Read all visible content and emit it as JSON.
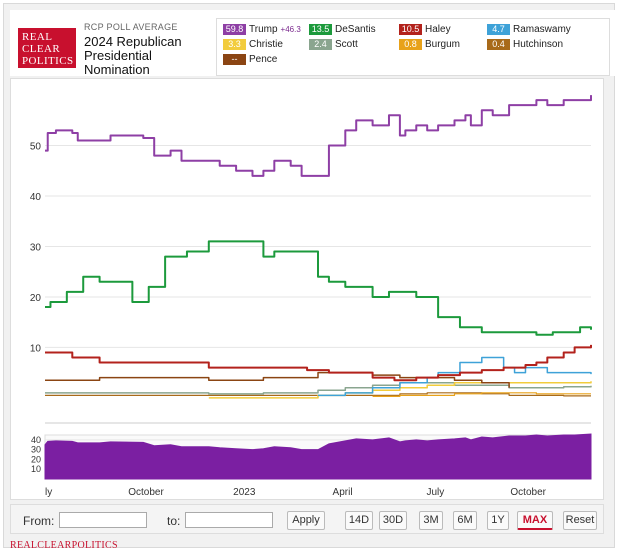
{
  "header": {
    "logo_lines": [
      "REAL",
      "CLEAR",
      "POLITICS"
    ],
    "kicker": "RCP POLL AVERAGE",
    "title": "2024 Republican Presidential Nomination"
  },
  "legend": [
    {
      "value": "59.8",
      "name": "Trump",
      "spread": "+46.3",
      "color": "#8e3fa5"
    },
    {
      "value": "13.5",
      "name": "DeSantis",
      "spread": "",
      "color": "#1c9a3c"
    },
    {
      "value": "10.5",
      "name": "Haley",
      "spread": "",
      "color": "#b3221c"
    },
    {
      "value": "4.7",
      "name": "Ramaswamy",
      "spread": "",
      "color": "#3ea2d8"
    },
    {
      "value": "3.3",
      "name": "Christie",
      "spread": "",
      "color": "#f2cc3c"
    },
    {
      "value": "2.4",
      "name": "Scott",
      "spread": "",
      "color": "#8aa58f"
    },
    {
      "value": "0.8",
      "name": "Burgum",
      "spread": "",
      "color": "#e8a21a"
    },
    {
      "value": "0.4",
      "name": "Hutchinson",
      "spread": "",
      "color": "#a86a1a"
    },
    {
      "value": "--",
      "name": "Pence",
      "spread": "",
      "color": "#8b4513"
    }
  ],
  "chart_data": {
    "type": "line",
    "x_tick_labels": [
      "ly",
      "October",
      "2023",
      "April",
      "July",
      "October"
    ],
    "y_ticks": [
      10,
      20,
      30,
      40,
      50
    ],
    "ylim": [
      -3,
      62
    ],
    "grid": true,
    "series": [
      {
        "name": "Trump",
        "color": "#8e3fa5",
        "width": 2,
        "x": [
          0,
          0.5,
          2,
          5,
          6,
          10,
          12,
          18,
          20,
          23,
          25,
          30,
          32,
          35,
          38,
          40,
          42,
          45,
          47,
          50,
          52,
          55,
          57,
          60,
          63,
          65,
          66,
          68,
          70,
          72,
          75,
          77,
          78,
          80,
          82,
          85,
          88,
          90,
          92,
          95,
          97,
          100
        ],
        "y": [
          49,
          52.5,
          53,
          52.5,
          51,
          51,
          52,
          51.5,
          48,
          49,
          47,
          47,
          46,
          45,
          44,
          45,
          47,
          46,
          44,
          44,
          50,
          53,
          55,
          54,
          56,
          52,
          53,
          54,
          53,
          54,
          55,
          56,
          54,
          57,
          56,
          58,
          58,
          59,
          58,
          59,
          59,
          60
        ]
      },
      {
        "name": "DeSantis",
        "color": "#1c9a3c",
        "width": 2,
        "x": [
          0,
          1,
          4,
          7,
          10,
          12,
          16,
          17,
          19,
          22,
          26,
          30,
          36,
          40,
          42,
          48,
          50,
          52,
          55,
          60,
          63,
          68,
          72,
          76,
          78,
          80,
          85,
          90,
          93,
          96,
          98,
          100
        ],
        "y": [
          18,
          19,
          21,
          24,
          23,
          23,
          19,
          19,
          22,
          28,
          29,
          31,
          31,
          28,
          29,
          29,
          24,
          23,
          22,
          20,
          21,
          20,
          16,
          14,
          14,
          13,
          13,
          12.5,
          13,
          13,
          14,
          13.5
        ]
      },
      {
        "name": "Haley",
        "color": "#b3221c",
        "width": 2,
        "x": [
          0,
          5,
          10,
          20,
          30,
          40,
          48,
          52,
          56,
          60,
          64,
          68,
          72,
          76,
          80,
          84,
          88,
          90,
          92,
          95,
          97,
          100
        ],
        "y": [
          9,
          8,
          7,
          7,
          6,
          6,
          5.5,
          5,
          5,
          4,
          3.5,
          4,
          4.5,
          5,
          5.5,
          6,
          6.5,
          7,
          8,
          9,
          10,
          10.5
        ]
      },
      {
        "name": "Pence",
        "color": "#8b4513",
        "width": 1.5,
        "x": [
          0,
          10,
          20,
          30,
          40,
          50,
          55,
          60,
          65,
          70,
          75,
          80,
          85
        ],
        "y": [
          3.5,
          4,
          4,
          3.5,
          4,
          5,
          5,
          4.5,
          4,
          4,
          3.5,
          3,
          2
        ]
      },
      {
        "name": "Ramaswamy",
        "color": "#3ea2d8",
        "width": 1.5,
        "x": [
          50,
          55,
          60,
          65,
          70,
          72,
          76,
          80,
          84,
          86,
          88,
          92,
          96,
          100
        ],
        "y": [
          0.5,
          1,
          2,
          3,
          4,
          5,
          7,
          8,
          6,
          5,
          6,
          5,
          5,
          4.7
        ]
      },
      {
        "name": "Christie",
        "color": "#f2cc3c",
        "width": 1.5,
        "x": [
          30,
          50,
          55,
          60,
          65,
          70,
          75,
          80,
          85,
          90,
          95,
          100
        ],
        "y": [
          0,
          0.5,
          1,
          1.5,
          2,
          2.5,
          3,
          3,
          3,
          3,
          3,
          3.3
        ]
      },
      {
        "name": "Scott",
        "color": "#8aa58f",
        "width": 1.5,
        "x": [
          0,
          10,
          20,
          30,
          40,
          50,
          55,
          60,
          65,
          70,
          75,
          80,
          85,
          90,
          95,
          100
        ],
        "y": [
          1,
          1,
          1,
          0.8,
          1,
          1.5,
          2,
          2.5,
          3,
          3,
          2.5,
          2.5,
          2,
          2,
          2.2,
          2.4
        ]
      },
      {
        "name": "Burgum",
        "color": "#e8a21a",
        "width": 1.2,
        "x": [
          60,
          65,
          70,
          75,
          80,
          85,
          90,
          95,
          100
        ],
        "y": [
          0.3,
          0.5,
          0.5,
          0.8,
          1,
          1,
          0.8,
          0.8,
          0.8
        ]
      },
      {
        "name": "Hutchinson",
        "color": "#a86a1a",
        "width": 1.2,
        "x": [
          0,
          20,
          40,
          55,
          60,
          65,
          70,
          75,
          80,
          85,
          90,
          95,
          100
        ],
        "y": [
          0.5,
          0.5,
          0.5,
          0.5,
          0.5,
          0.8,
          1,
          1,
          0.8,
          0.5,
          0.5,
          0.4,
          0.4
        ]
      }
    ],
    "navigator": {
      "y_ticks": [
        10,
        20,
        30,
        40
      ],
      "ylim": [
        0,
        45
      ],
      "series_name": "Trump",
      "color": "#7b1fa2"
    }
  },
  "controls": {
    "from_label": "From:",
    "to_label": "to:",
    "apply": "Apply",
    "ranges": [
      "14D",
      "30D",
      "3M",
      "6M",
      "1Y",
      "MAX"
    ],
    "active_range": "MAX",
    "reset": "Reset"
  },
  "footer": {
    "brand": "REALCLEARPOLITICS"
  }
}
